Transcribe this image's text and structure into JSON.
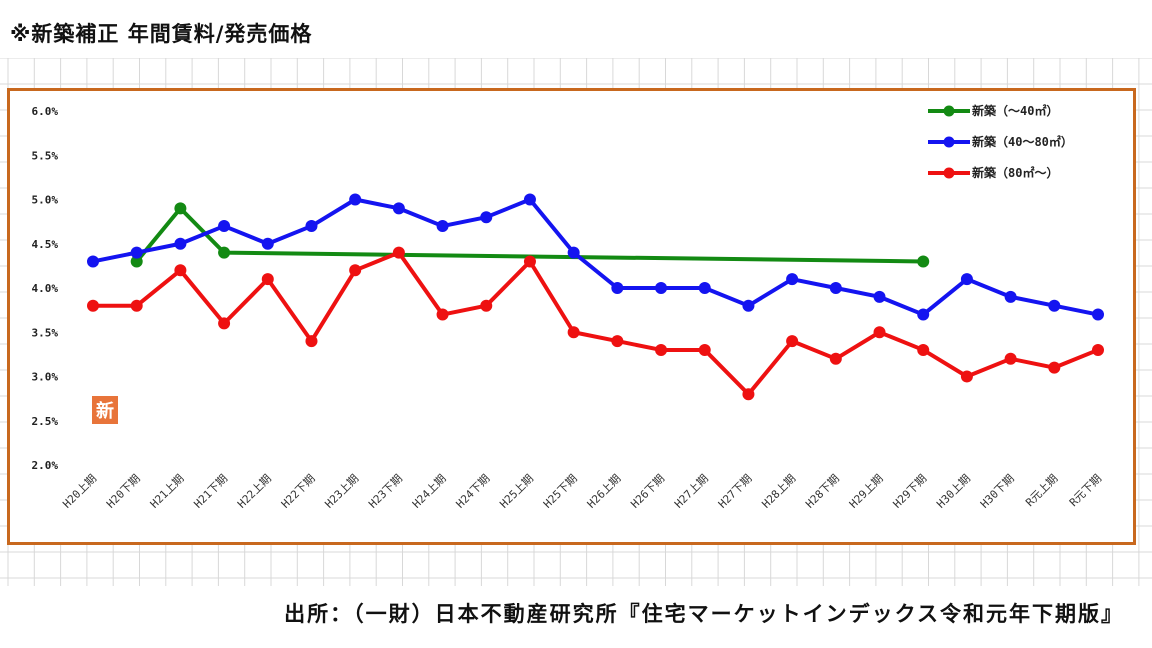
{
  "page": {
    "title": "※新築補正 年間賃料/発売価格",
    "source": "出所：（一財）日本不動産研究所『住宅マーケットインデックス令和元年下期版』",
    "badge": "新"
  },
  "chart_data": {
    "type": "line",
    "title": "",
    "xlabel": "",
    "ylabel": "",
    "ylim": [
      2.0,
      6.0
    ],
    "yticks": [
      "6.0%",
      "5.5%",
      "5.0%",
      "4.5%",
      "4.0%",
      "3.5%",
      "3.0%",
      "2.5%",
      "2.0%"
    ],
    "categories": [
      "H20上期",
      "H20下期",
      "H21上期",
      "H21下期",
      "H22上期",
      "H22下期",
      "H23上期",
      "H23下期",
      "H24上期",
      "H24下期",
      "H25上期",
      "H25下期",
      "H26上期",
      "H26下期",
      "H27上期",
      "H27下期",
      "H28上期",
      "H28下期",
      "H29上期",
      "H29下期",
      "H30上期",
      "H30下期",
      "R元上期",
      "R元下期"
    ],
    "legend_position": "top-right",
    "series": [
      {
        "name": "新築（～40㎡）",
        "color": "#138a13",
        "values": [
          null,
          4.3,
          4.9,
          4.4,
          null,
          null,
          null,
          null,
          null,
          null,
          null,
          null,
          null,
          null,
          null,
          null,
          null,
          null,
          null,
          4.3,
          null,
          null,
          null,
          null
        ],
        "markers": [
          false,
          true,
          true,
          true,
          false,
          false,
          false,
          false,
          false,
          false,
          false,
          false,
          false,
          false,
          false,
          false,
          false,
          false,
          false,
          true,
          false,
          false,
          false,
          false
        ]
      },
      {
        "name": "新築（40～80㎡）",
        "color": "#1414f0",
        "values": [
          4.3,
          4.4,
          4.5,
          4.7,
          4.5,
          4.7,
          5.0,
          4.9,
          4.7,
          4.8,
          5.0,
          4.4,
          4.0,
          4.0,
          4.0,
          3.8,
          4.1,
          4.0,
          3.9,
          3.7,
          4.1,
          3.9,
          3.8,
          3.7
        ]
      },
      {
        "name": "新築（80㎡～）",
        "color": "#ee1111",
        "values": [
          3.8,
          3.8,
          4.2,
          3.6,
          4.1,
          3.4,
          4.2,
          4.4,
          3.7,
          3.8,
          4.3,
          3.5,
          3.4,
          3.3,
          3.3,
          2.8,
          3.4,
          3.2,
          3.5,
          3.3,
          3.0,
          3.2,
          3.1,
          3.3
        ]
      }
    ],
    "colors": {
      "frame": "#c8681e",
      "grid_bg": "#d8d8d8",
      "badge": "#e8743a"
    }
  }
}
